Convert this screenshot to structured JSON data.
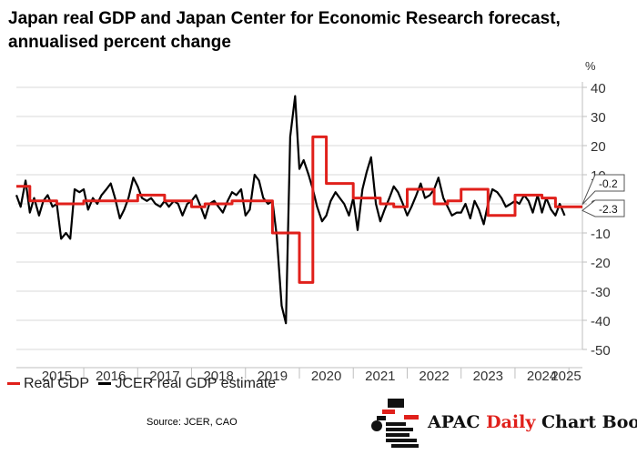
{
  "title": "Japan real GDP and Japan Center for Economic Research forecast, annualised percent change",
  "source": "Source: JCER, CAO",
  "brand": {
    "part1": "APAC",
    "part2": "Daily",
    "part3": "Chart Book"
  },
  "colors": {
    "real_gdp": "#e0201b",
    "jcer": "#000000",
    "grid": "#d9d9d9",
    "axis": "#bfbfbf"
  },
  "chart_data": {
    "type": "line",
    "ylabel": "%",
    "ylim": [
      -50,
      40
    ],
    "yticks": [
      40,
      30,
      20,
      10,
      0,
      -10,
      -20,
      -30,
      -40,
      -50
    ],
    "x_categories": [
      "2015",
      "2016",
      "2017",
      "2018",
      "2019",
      "2020",
      "2021",
      "2022",
      "2023",
      "2024",
      "2025"
    ],
    "grid": "horizontal",
    "legend_position": "bottom-left",
    "annotations": [
      {
        "label": "-0.2",
        "value": -0.2
      },
      {
        "label": "-2.3",
        "value": -2.3
      }
    ],
    "series": [
      {
        "name": "Real GDP",
        "style": "step",
        "x": [
          2014.75,
          2015.0,
          2015.25,
          2015.5,
          2015.75,
          2016.0,
          2016.25,
          2016.5,
          2016.75,
          2017.0,
          2017.25,
          2017.5,
          2017.75,
          2018.0,
          2018.25,
          2018.5,
          2018.75,
          2019.0,
          2019.25,
          2019.5,
          2019.75,
          2020.0,
          2020.25,
          2020.5,
          2020.75,
          2021.0,
          2021.25,
          2021.5,
          2021.75,
          2022.0,
          2022.25,
          2022.5,
          2022.75,
          2023.0,
          2023.25,
          2023.5,
          2023.75,
          2024.0,
          2024.25,
          2024.5,
          2024.75,
          2025.0
        ],
        "values": [
          6,
          1,
          1,
          0,
          0,
          1,
          1,
          1,
          1,
          3,
          3,
          1,
          1,
          -1,
          0,
          0,
          1,
          1,
          1,
          -10,
          -10,
          -27,
          23,
          7,
          7,
          2,
          2,
          0,
          -1,
          5,
          5,
          0,
          1,
          5,
          5,
          -4,
          -4,
          3,
          3,
          2,
          -1,
          -1
        ]
      },
      {
        "name": "JCER real GDP estimate",
        "style": "line",
        "x": [
          2014.75,
          2014.83,
          2014.92,
          2015.0,
          2015.08,
          2015.17,
          2015.25,
          2015.33,
          2015.42,
          2015.5,
          2015.58,
          2015.67,
          2015.75,
          2015.83,
          2015.92,
          2016.0,
          2016.08,
          2016.17,
          2016.25,
          2016.33,
          2016.42,
          2016.5,
          2016.58,
          2016.67,
          2016.75,
          2016.83,
          2016.92,
          2017.0,
          2017.08,
          2017.17,
          2017.25,
          2017.33,
          2017.42,
          2017.5,
          2017.58,
          2017.67,
          2017.75,
          2017.83,
          2017.92,
          2018.0,
          2018.08,
          2018.17,
          2018.25,
          2018.33,
          2018.42,
          2018.5,
          2018.58,
          2018.67,
          2018.75,
          2018.83,
          2018.92,
          2019.0,
          2019.08,
          2019.17,
          2019.25,
          2019.33,
          2019.42,
          2019.5,
          2019.58,
          2019.67,
          2019.75,
          2019.83,
          2019.92,
          2020.0,
          2020.08,
          2020.17,
          2020.25,
          2020.33,
          2020.42,
          2020.5,
          2020.58,
          2020.67,
          2020.75,
          2020.83,
          2020.92,
          2021.0,
          2021.08,
          2021.17,
          2021.25,
          2021.33,
          2021.42,
          2021.5,
          2021.58,
          2021.67,
          2021.75,
          2021.83,
          2021.92,
          2022.0,
          2022.08,
          2022.17,
          2022.25,
          2022.33,
          2022.42,
          2022.5,
          2022.58,
          2022.67,
          2022.75,
          2022.83,
          2022.92,
          2023.0,
          2023.08,
          2023.17,
          2023.25,
          2023.33,
          2023.42,
          2023.5,
          2023.58,
          2023.67,
          2023.75,
          2023.83,
          2023.92,
          2024.0,
          2024.08,
          2024.17,
          2024.25,
          2024.33,
          2024.42,
          2024.5,
          2024.58,
          2024.67,
          2024.75,
          2024.83,
          2024.92
        ],
        "values": [
          3,
          -1,
          8,
          -3,
          2,
          -4,
          1,
          3,
          -1,
          0,
          -12,
          -10,
          -12,
          5,
          4,
          5,
          -2,
          2,
          0,
          3,
          5,
          7,
          2,
          -5,
          -2,
          2,
          9,
          6,
          2,
          1,
          2,
          0,
          -1,
          1,
          -1,
          1,
          0,
          -4,
          0,
          1,
          3,
          -1,
          -5,
          0,
          1,
          -1,
          -3,
          1,
          4,
          3,
          5,
          -4,
          -2,
          10,
          8,
          2,
          0,
          1,
          -11,
          -35,
          -41,
          23,
          37,
          12,
          15,
          10,
          5,
          -1,
          -6,
          -4,
          1,
          4,
          2,
          0,
          -4,
          2,
          -9,
          5,
          11,
          16,
          0,
          -6,
          -2,
          2,
          6,
          4,
          0,
          -4,
          -1,
          3,
          7,
          2,
          3,
          5,
          9,
          2,
          -1,
          -4,
          -3,
          -3,
          0,
          -5,
          1,
          -2,
          -7,
          0,
          5,
          4,
          2,
          -1,
          0,
          1,
          0,
          3,
          1,
          -3,
          3,
          -3,
          2,
          -2,
          -4,
          0,
          -4
        ]
      }
    ]
  }
}
